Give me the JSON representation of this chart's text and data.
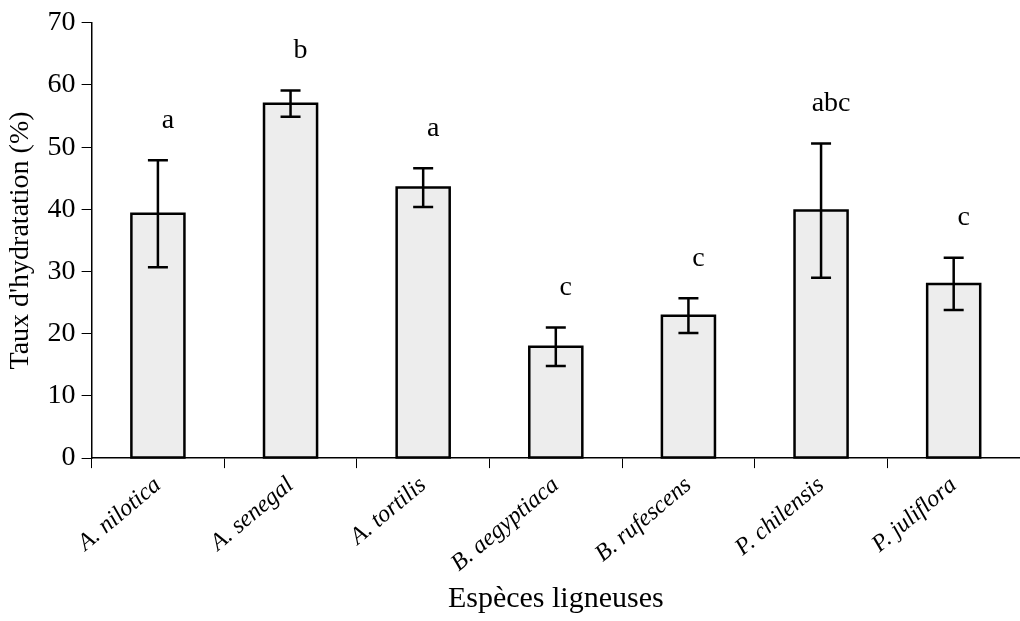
{
  "chart_data": {
    "type": "bar",
    "xlabel": "Espèces ligneuses",
    "ylabel": "Taux d'hydratation (%)",
    "categories": [
      "A. nilotica",
      "A. senegal",
      "A. tortilis",
      "B. aegyptiaca",
      "B. rufescens",
      "P. chilensis",
      "P. juliflora"
    ],
    "values": [
      39.3,
      57.0,
      43.5,
      17.9,
      22.9,
      39.8,
      28.0
    ],
    "errors": [
      8.6,
      2.1,
      3.1,
      3.1,
      2.8,
      10.8,
      4.2
    ],
    "color": "#ededed",
    "ylim": [
      0,
      70
    ],
    "yticks": [
      0,
      10,
      20,
      30,
      40,
      50,
      60,
      70
    ],
    "grid": false,
    "legend": false,
    "annotations": [
      "a",
      "b",
      "a",
      "c",
      "c",
      "abc",
      "c"
    ]
  }
}
